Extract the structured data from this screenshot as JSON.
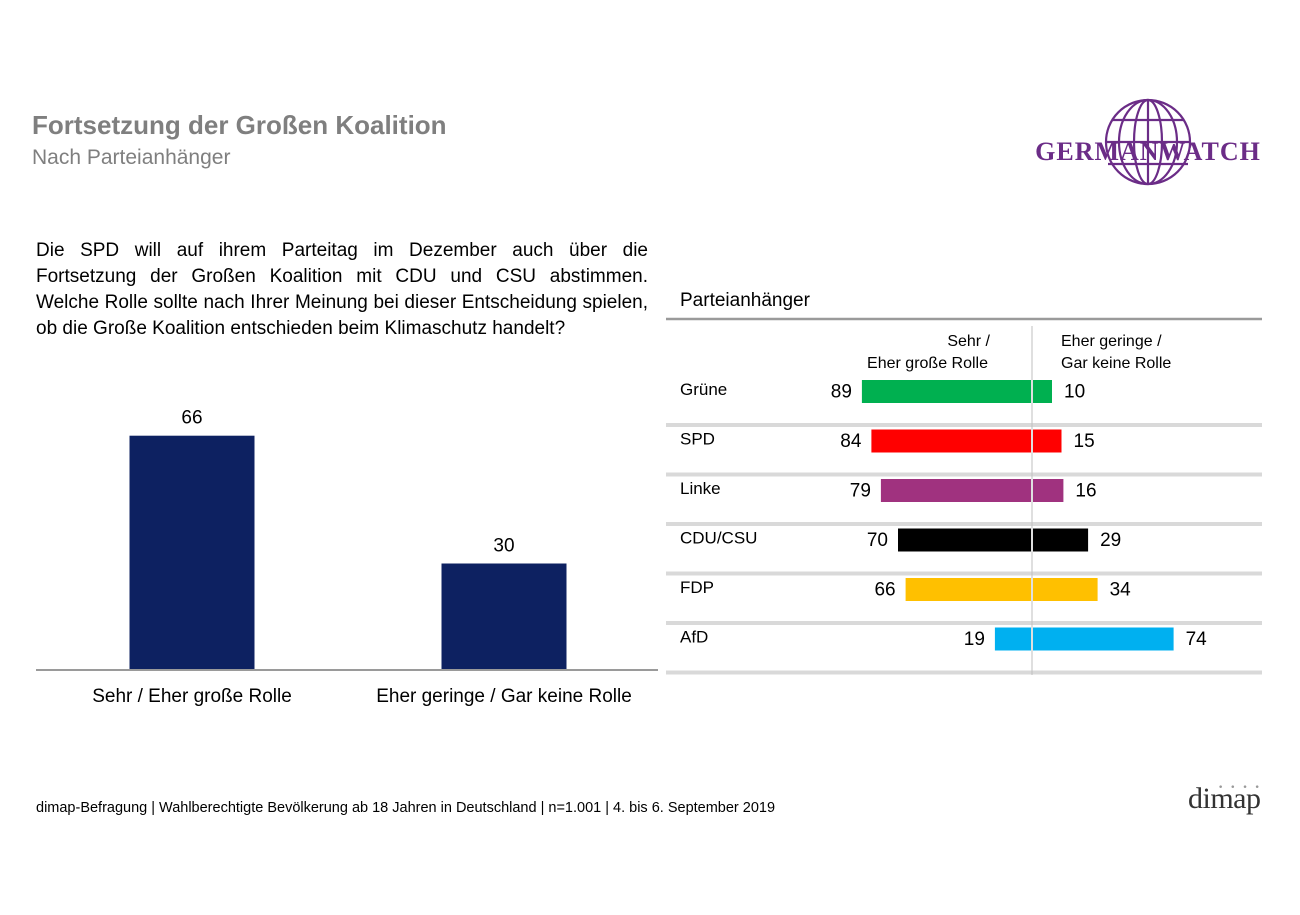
{
  "title": "Fortsetzung der Großen Koalition",
  "subtitle": "Nach Parteianhänger",
  "question": "Die SPD will auf ihrem Parteitag im Dezember auch über die Fortsetzung der Großen Koalition mit CDU und CSU abstimmen. Welche Rolle sollte nach Ihrer Meinung bei dieser Entscheidung spielen, ob die Große Koalition entschieden beim Klimaschutz handelt?",
  "logo": {
    "text": "GERMANWATCH",
    "icon": "globe-icon",
    "color": "#6b2c87"
  },
  "footer": "dimap-Befragung | Wahlberechtigte Bevölkerung ab 18 Jahren in Deutschland | n=1.001 | 4. bis 6. September 2019",
  "publisher_logo": {
    "text": "dimap"
  },
  "chart_data": [
    {
      "type": "bar",
      "title": "",
      "categories": [
        "Sehr / Eher große Rolle",
        "Eher geringe / Gar keine Rolle"
      ],
      "values": [
        66,
        30
      ],
      "color": "#0d2161",
      "ylim": [
        0,
        100
      ],
      "grid": false
    },
    {
      "type": "bar",
      "orientation": "diverging-horizontal",
      "title": "Parteianhänger",
      "left_header": [
        "Sehr /",
        "Eher große Rolle"
      ],
      "right_header": [
        "Eher geringe /",
        "Gar keine Rolle"
      ],
      "categories": [
        "Grüne",
        "SPD",
        "Linke",
        "CDU/CSU",
        "FDP",
        "AfD"
      ],
      "series": [
        {
          "name": "Sehr / Eher große Rolle",
          "values": [
            89,
            84,
            79,
            70,
            66,
            19
          ]
        },
        {
          "name": "Eher geringe / Gar keine Rolle",
          "values": [
            10,
            15,
            16,
            29,
            34,
            74
          ]
        }
      ],
      "colors": [
        "#00b050",
        "#ff0000",
        "#a0327f",
        "#000000",
        "#ffc000",
        "#00b0f0"
      ],
      "xlim": [
        0,
        100
      ]
    }
  ]
}
